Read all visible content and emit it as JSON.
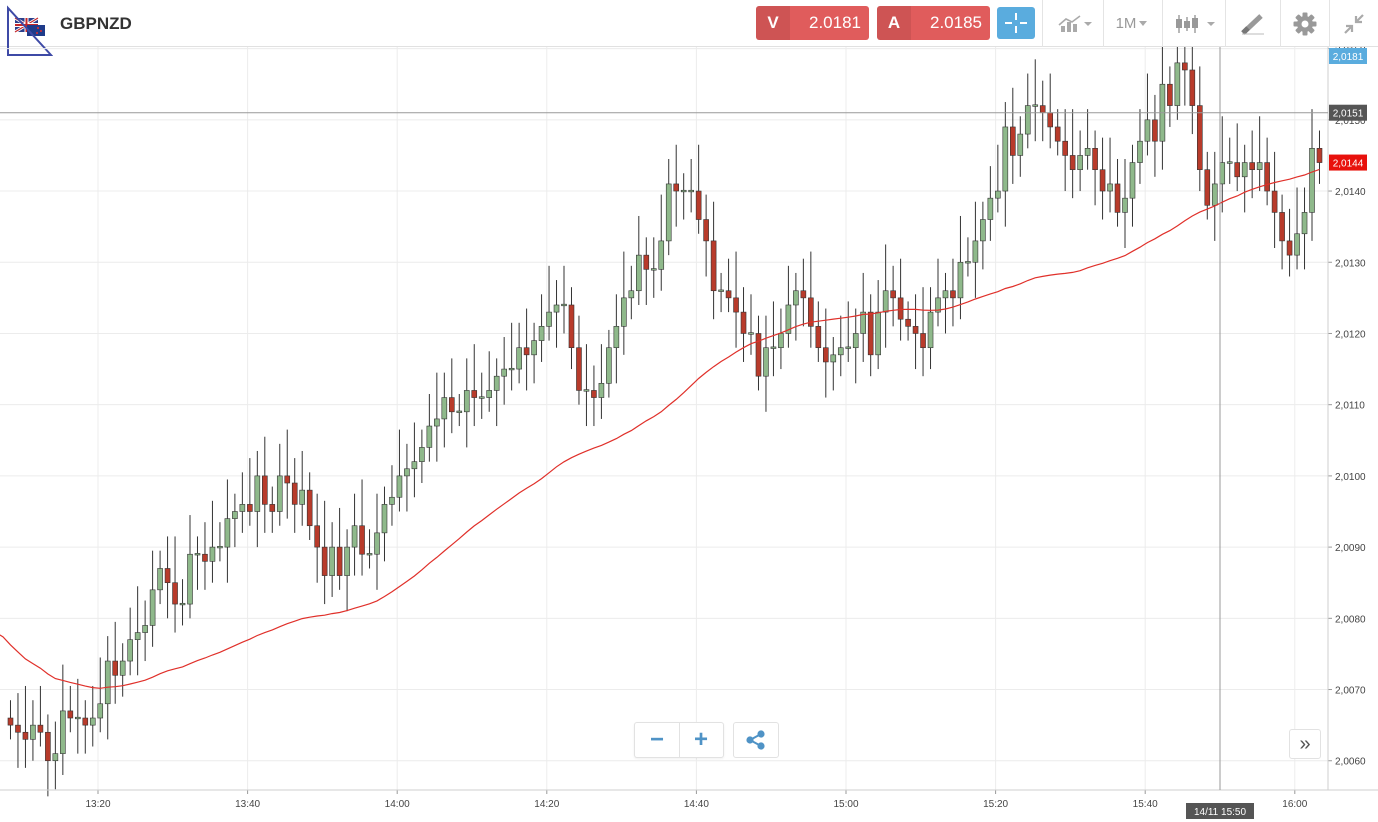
{
  "header": {
    "symbol": "GBPNZD",
    "sell_tag": "V",
    "sell_price": "2.0181",
    "buy_tag": "A",
    "buy_price": "2.0185",
    "timeframe": "1M"
  },
  "toolbar_icons": [
    "flag-icon",
    "crosshair-icon",
    "compare-chart-icon",
    "timeframe-selector",
    "candlestick-type-icon",
    "drawing-tool-icon",
    "gear-icon",
    "collapse-icon"
  ],
  "controls": {
    "zoom_out": "−",
    "zoom_in": "+",
    "scroll_forward": "»"
  },
  "colors": {
    "up_candle": "#8fb98b",
    "down_candle": "#b83b2b",
    "moving_average": "#e0302a",
    "sell_box": "#e05c5c",
    "buy_box": "#e05c5c",
    "crosshair_button": "#5aacde",
    "current_price_badge": "#e8110c",
    "cursor_badge": "#555555",
    "top_badge": "#5aacde"
  },
  "chart_data": {
    "type": "candlestick",
    "symbol": "GBPNZD",
    "interval": "1M",
    "x_tick_labels": [
      "13:20",
      "13:40",
      "14:00",
      "14:20",
      "14:40",
      "15:00",
      "15:20",
      "15:40",
      "16:00"
    ],
    "y_tick_labels": [
      "2,0160",
      "2,0150",
      "2,0140",
      "2,0130",
      "2,0120",
      "2,0110",
      "2,0100",
      "2,0090",
      "2,0080",
      "2,0070",
      "2,0060"
    ],
    "ylim": [
      2.00587,
      2.01643
    ],
    "grid": true,
    "price_badges": {
      "top": "2,0181",
      "cursor": "2,0151",
      "current": "2,0144"
    },
    "cursor": {
      "date_time": "14/11 15:50",
      "price": 2.0151
    },
    "close": [
      2.0065,
      2.0064,
      2.0063,
      2.0065,
      2.0064,
      2.006,
      2.0061,
      2.0067,
      2.0066,
      2.0066,
      2.0065,
      2.0066,
      2.0068,
      2.0074,
      2.0072,
      2.0074,
      2.0077,
      2.0078,
      2.0079,
      2.0084,
      2.0087,
      2.0085,
      2.0082,
      2.0082,
      2.0089,
      2.0089,
      2.0088,
      2.009,
      2.009,
      2.0094,
      2.0095,
      2.0096,
      2.0095,
      2.01,
      2.0096,
      2.0095,
      2.01,
      2.0099,
      2.0096,
      2.0098,
      2.0093,
      2.009,
      2.0086,
      2.009,
      2.0086,
      2.009,
      2.0093,
      2.0089,
      2.0089,
      2.0092,
      2.0096,
      2.0097,
      2.01,
      2.0101,
      2.0102,
      2.0104,
      2.0107,
      2.0108,
      2.0111,
      2.0109,
      2.0109,
      2.0112,
      2.0111,
      2.0111,
      2.0112,
      2.0114,
      2.0115,
      2.0115,
      2.0118,
      2.0117,
      2.0119,
      2.0121,
      2.0123,
      2.0124,
      2.0124,
      2.0118,
      2.0112,
      2.0112,
      2.0111,
      2.0113,
      2.0118,
      2.0121,
      2.0125,
      2.0126,
      2.0131,
      2.0129,
      2.0129,
      2.0133,
      2.0141,
      2.014,
      2.014,
      2.014,
      2.0136,
      2.0133,
      2.0126,
      2.0126,
      2.0125,
      2.0123,
      2.012,
      2.012,
      2.0114,
      2.0118,
      2.0118,
      2.012,
      2.0124,
      2.0126,
      2.0125,
      2.0121,
      2.0118,
      2.0116,
      2.0117,
      2.0118,
      2.0118,
      2.012,
      2.0123,
      2.0117,
      2.0123,
      2.0126,
      2.0125,
      2.0122,
      2.0121,
      2.012,
      2.0118,
      2.0123,
      2.0125,
      2.0126,
      2.0125,
      2.013,
      2.013,
      2.0133,
      2.0136,
      2.0139,
      2.014,
      2.0149,
      2.0145,
      2.0148,
      2.0152,
      2.0152,
      2.0151,
      2.0149,
      2.0147,
      2.0145,
      2.0143,
      2.0145,
      2.0146,
      2.0143,
      2.014,
      2.0141,
      2.0137,
      2.0139,
      2.0144,
      2.0147,
      2.015,
      2.0147,
      2.0155,
      2.0152,
      2.0158,
      2.0157,
      2.0152,
      2.0143,
      2.0138,
      2.0141,
      2.0144,
      2.0144,
      2.0142,
      2.0144,
      2.0143,
      2.0144,
      2.014,
      2.0137,
      2.0133,
      2.0131,
      2.0134,
      2.0137,
      2.0146,
      2.0144
    ],
    "ma_period": 50,
    "ma_color": "#e0302a"
  }
}
